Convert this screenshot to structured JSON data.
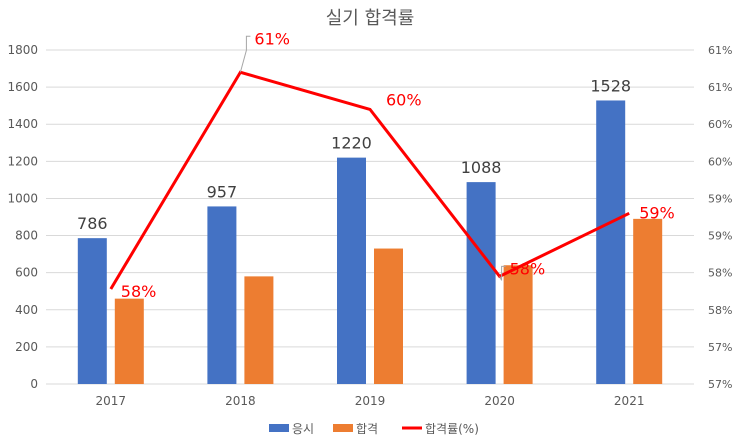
{
  "chart_data": {
    "type": "bar",
    "title": "실기 합격률",
    "categories": [
      "2017",
      "2018",
      "2019",
      "2020",
      "2021"
    ],
    "series": [
      {
        "name": "응시",
        "kind": "bar",
        "axis": "left",
        "color": "#4472C4",
        "values": [
          786,
          957,
          1220,
          1088,
          1528
        ],
        "data_labels": [
          "786",
          "957",
          "1220",
          "1088",
          "1528"
        ]
      },
      {
        "name": "합격",
        "kind": "bar",
        "axis": "left",
        "color": "#ED7D31",
        "values": [
          460,
          580,
          730,
          640,
          890
        ]
      },
      {
        "name": "합격률(%)",
        "kind": "line",
        "axis": "right",
        "color": "#FF0000",
        "values": [
          57.78,
          60.7,
          60.2,
          57.95,
          58.8
        ],
        "data_labels": [
          "58%",
          "61%",
          "60%",
          "58%",
          "59%"
        ]
      }
    ],
    "left_axis": {
      "ylim": [
        0,
        1800
      ],
      "ticks": [
        0,
        200,
        400,
        600,
        800,
        1000,
        1200,
        1400,
        1600,
        1800
      ],
      "tick_labels": [
        "0",
        "200",
        "400",
        "600",
        "800",
        "1000",
        "1200",
        "1400",
        "1600",
        "1800"
      ]
    },
    "right_axis": {
      "ylim": [
        56.5,
        61.0
      ],
      "ticks": [
        56.5,
        57.0,
        57.5,
        58.0,
        58.5,
        59.0,
        59.5,
        60.0,
        60.5,
        61.0
      ],
      "tick_labels": [
        "57%",
        "57%",
        "58%",
        "58%",
        "59%",
        "59%",
        "60%",
        "60%",
        "61%",
        "61%"
      ]
    },
    "grid": true,
    "legend": "bottom-center"
  }
}
